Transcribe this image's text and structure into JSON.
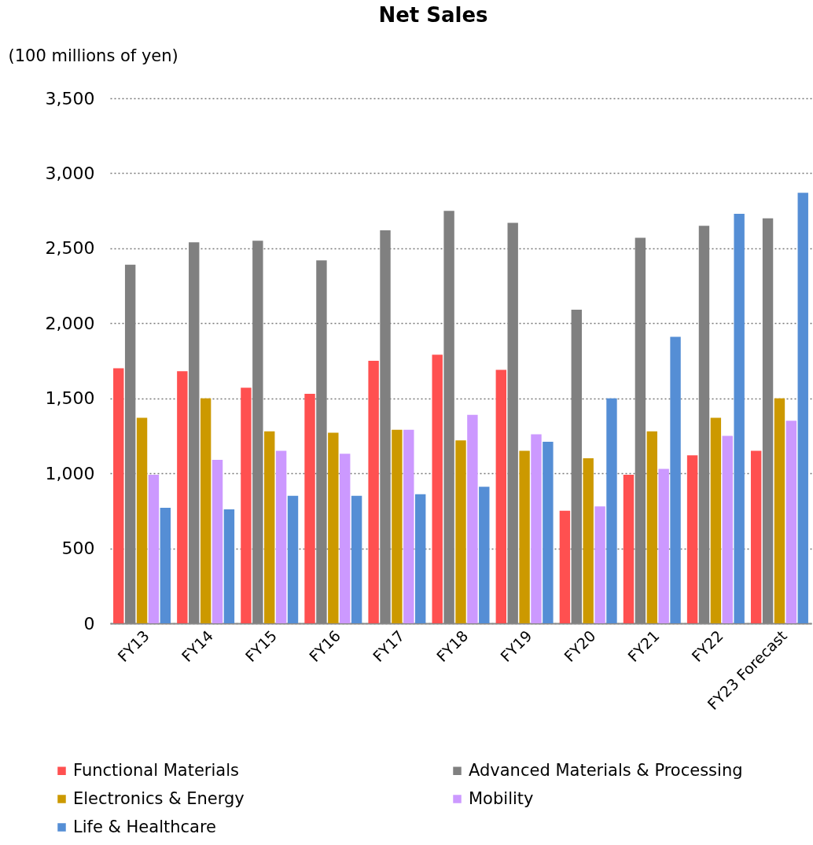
{
  "chart_data": {
    "type": "bar",
    "title": "Net Sales",
    "ylabel": "(100 millions of yen)",
    "categories": [
      "FY13",
      "FY14",
      "FY15",
      "FY16",
      "FY17",
      "FY18",
      "FY19",
      "FY20",
      "FY21",
      "FY22",
      "FY23 Forecast"
    ],
    "series": [
      {
        "name": "Functional Materials",
        "color": "#ff5050",
        "values": [
          1700,
          1680,
          1570,
          1530,
          1750,
          1790,
          1690,
          750,
          990,
          1120,
          1150
        ]
      },
      {
        "name": "Advanced Materials & Processing",
        "color": "#808080",
        "values": [
          2390,
          2540,
          2550,
          2420,
          2620,
          2750,
          2670,
          2090,
          2570,
          2650,
          2700
        ]
      },
      {
        "name": "Electronics & Energy",
        "color": "#cc9900",
        "values": [
          1370,
          1500,
          1280,
          1270,
          1290,
          1220,
          1150,
          1100,
          1280,
          1370,
          1500
        ]
      },
      {
        "name": "Mobility",
        "color": "#cc99ff",
        "values": [
          990,
          1090,
          1150,
          1130,
          1290,
          1390,
          1260,
          780,
          1030,
          1250,
          1350
        ]
      },
      {
        "name": "Life & Healthcare",
        "color": "#558ed5",
        "values": [
          770,
          760,
          850,
          850,
          860,
          910,
          1210,
          1500,
          1910,
          2730,
          2870
        ]
      }
    ],
    "ylim": [
      0,
      3500
    ],
    "yticks": [
      0,
      500,
      {
        "value": 1000,
        "label": "1,000"
      },
      {
        "value": 1500,
        "label": "1,500"
      },
      {
        "value": 2000,
        "label": "2,000"
      },
      {
        "value": 2500,
        "label": "2,500"
      },
      {
        "value": 3000,
        "label": "3,000"
      },
      {
        "value": 3500,
        "label": "3,500"
      }
    ],
    "grid": "y",
    "legend": "bottom"
  }
}
